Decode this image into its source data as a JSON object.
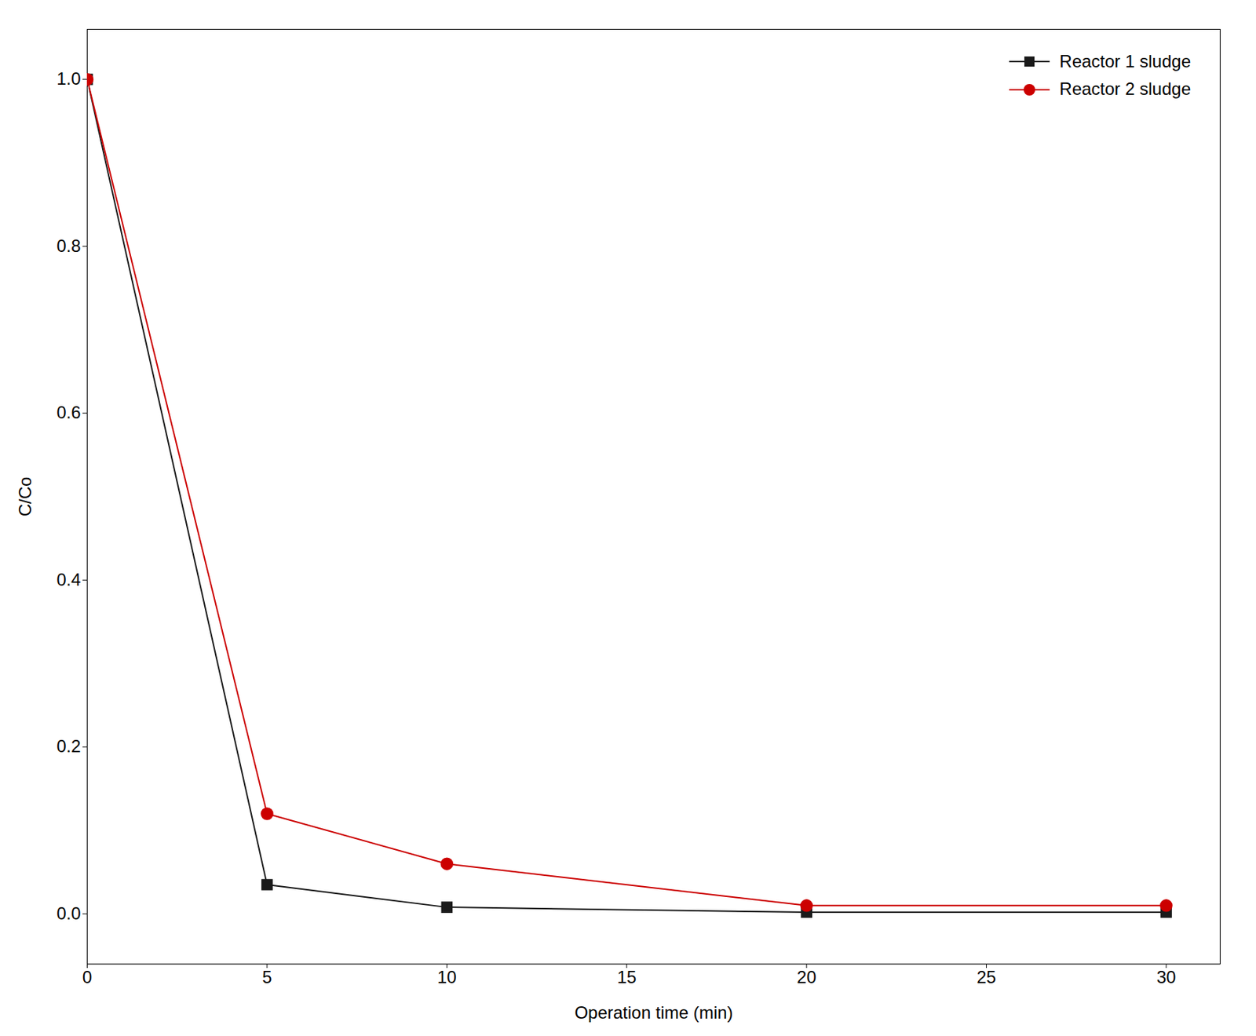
{
  "chart_data": {
    "type": "line",
    "x": [
      0,
      5,
      10,
      20,
      30
    ],
    "series": [
      {
        "name": "Reactor 1 sludge",
        "color": "#1a1a1a",
        "marker": "square",
        "values": [
          1.0,
          0.035,
          0.008,
          0.002,
          0.002
        ]
      },
      {
        "name": "Reactor 2 sludge",
        "color": "#cc0000",
        "marker": "circle",
        "values": [
          1.0,
          0.12,
          0.06,
          0.01,
          0.01
        ]
      }
    ],
    "xlabel": "Operation time (min)",
    "ylabel": "C/Co",
    "xlim": [
      0,
      31.5
    ],
    "ylim": [
      -0.06,
      1.06
    ],
    "xticks": [
      0,
      5,
      10,
      15,
      20,
      25,
      30
    ],
    "yticks": [
      {
        "value": 0.0,
        "label": "0.0"
      },
      0.2,
      0.4,
      0.6,
      0.8,
      {
        "value": 1.0,
        "label": "1.0"
      }
    ],
    "legend": "upper right",
    "grid": false
  }
}
